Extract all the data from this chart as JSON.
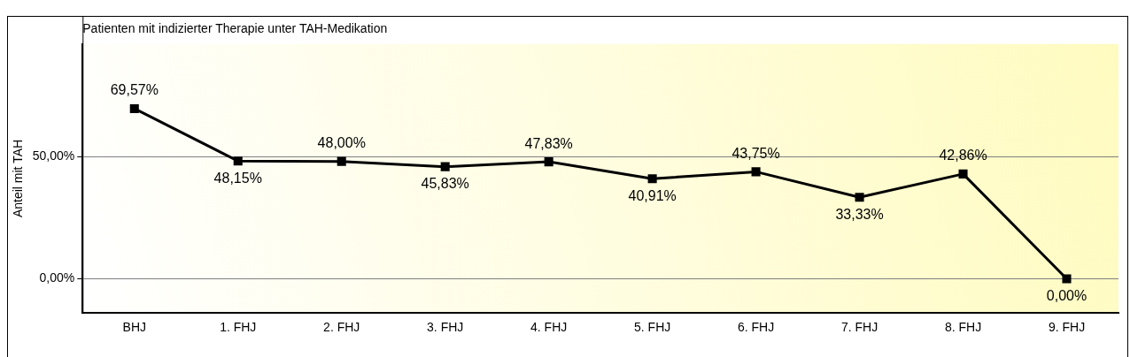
{
  "chart_data": {
    "type": "line",
    "title": "Patienten mit indizierter Therapie unter TAH-Medikation",
    "ylabel": "Anteil mit TAH",
    "categories": [
      "BHJ",
      "1. FHJ",
      "2. FHJ",
      "3. FHJ",
      "4. FHJ",
      "5. FHJ",
      "6. FHJ",
      "7. FHJ",
      "8. FHJ",
      "9. FHJ"
    ],
    "series": [
      {
        "color": "#000000",
        "values": [
          69.57,
          48.15,
          48.0,
          45.83,
          47.83,
          40.91,
          43.75,
          33.33,
          42.86,
          0.0
        ],
        "value_labels": [
          "69,57%",
          "48,15%",
          "48,00%",
          "45,83%",
          "47,83%",
          "40,91%",
          "43,75%",
          "33,33%",
          "42,86%",
          "0,00%"
        ]
      }
    ],
    "ylim": [
      -14,
      96
    ],
    "yticks": [
      {
        "value": 0,
        "label": "0,00%"
      },
      {
        "value": 50,
        "label": "50,00%"
      }
    ],
    "grid": "y",
    "legend": false,
    "marker": "square",
    "line_style": "solid"
  }
}
